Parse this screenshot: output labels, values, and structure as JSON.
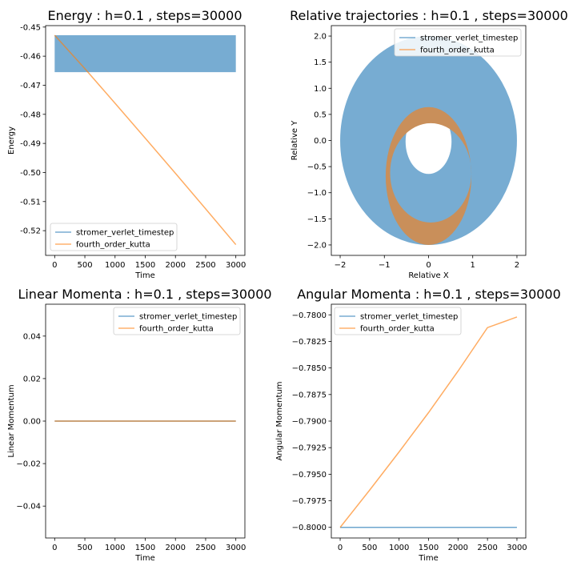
{
  "colors": {
    "blue": "#1f77b4",
    "orange": "#ff7f0e",
    "dark_orange": "#c98f5a",
    "light_blue": "#77acd2"
  },
  "chart_data": [
    {
      "id": "energy",
      "type": "line",
      "title": "Energy : h=0.1 , steps=30000",
      "xlabel": "Time",
      "ylabel": "Energy",
      "xlim": [
        -150,
        3150
      ],
      "ylim": [
        -0.5285,
        -0.4495
      ],
      "xticks": [
        0,
        500,
        1000,
        1500,
        2000,
        2500,
        3000
      ],
      "xtick_labels": [
        "0",
        "500",
        "1000",
        "1500",
        "2000",
        "2500",
        "3000"
      ],
      "yticks": [
        -0.45,
        -0.46,
        -0.47,
        -0.48,
        -0.49,
        -0.5,
        -0.51,
        -0.52
      ],
      "ytick_labels": [
        "-0.45",
        "-0.46",
        "-0.47",
        "-0.48",
        "-0.49",
        "-0.50",
        "-0.51",
        "-0.52"
      ],
      "legend": "bottom-left",
      "series": [
        {
          "name": "stromer_verlet_timestep",
          "style": "band",
          "x": [
            0,
            3000
          ],
          "ymin": -0.4655,
          "ymax": -0.4528
        },
        {
          "name": "fourth_order_kutta",
          "style": "line",
          "x": [
            0,
            500,
            1000,
            1500,
            2000,
            2500,
            3000
          ],
          "y": [
            -0.4528,
            -0.4643,
            -0.4762,
            -0.4882,
            -0.5003,
            -0.5125,
            -0.5248
          ]
        }
      ]
    },
    {
      "id": "trajectories",
      "type": "line",
      "title": "Relative trajectories : h=0.1 , steps=30000",
      "xlabel": "Relative X",
      "ylabel": "Relative Y",
      "xlim": [
        -2.2,
        2.2
      ],
      "ylim": [
        -2.2,
        2.2
      ],
      "xticks": [
        -2,
        -1,
        0,
        1,
        2
      ],
      "xtick_labels": [
        "−2",
        "−1",
        "0",
        "1",
        "2"
      ],
      "yticks": [
        2.0,
        1.5,
        1.0,
        0.5,
        0.0,
        -0.5,
        -1.0,
        -1.5,
        -2.0
      ],
      "ytick_labels": [
        "2.0",
        "1.5",
        "1.0",
        "0.5",
        "0.0",
        "−0.5",
        "−1.0",
        "−1.5",
        "−2.0"
      ],
      "legend": "top-right",
      "series": [
        {
          "name": "stromer_verlet_timestep",
          "style": "annulus",
          "outer_radius": 2.0,
          "inner_center": [
            0,
            -0.02
          ],
          "inner_rx": 0.52,
          "inner_ry": 0.62
        },
        {
          "name": "fourth_order_kutta",
          "style": "crescent",
          "outer_center": [
            0,
            -0.68
          ],
          "outer_rx": 0.97,
          "outer_ry": 1.32,
          "inner_center": [
            0.05,
            -0.62
          ],
          "inner_rx": 0.92,
          "inner_ry": 0.95
        }
      ]
    },
    {
      "id": "linear",
      "type": "line",
      "title": "Linear Momenta : h=0.1 , steps=30000",
      "xlabel": "Time",
      "ylabel": "Linear Momentum",
      "xlim": [
        -150,
        3150
      ],
      "ylim": [
        -0.055,
        0.055
      ],
      "xticks": [
        0,
        500,
        1000,
        1500,
        2000,
        2500,
        3000
      ],
      "xtick_labels": [
        "0",
        "500",
        "1000",
        "1500",
        "2000",
        "2500",
        "3000"
      ],
      "yticks": [
        0.04,
        0.02,
        0.0,
        -0.02,
        -0.04
      ],
      "ytick_labels": [
        "0.04",
        "0.02",
        "0.00",
        "−0.02",
        "−0.04"
      ],
      "legend": "top-right",
      "series": [
        {
          "name": "stromer_verlet_timestep",
          "style": "line",
          "x": [
            0,
            3000
          ],
          "y": [
            0,
            0
          ]
        },
        {
          "name": "fourth_order_kutta",
          "style": "line",
          "x": [
            0,
            3000
          ],
          "y": [
            0,
            0
          ]
        }
      ]
    },
    {
      "id": "angular",
      "type": "line",
      "title": "Angular Momenta : h=0.1 , steps=30000",
      "xlabel": "Time",
      "ylabel": "Angular Momentum",
      "xlim": [
        -150,
        3150
      ],
      "ylim": [
        -0.801,
        -0.779
      ],
      "xticks": [
        0,
        500,
        1000,
        1500,
        2000,
        2500,
        3000
      ],
      "xtick_labels": [
        "0",
        "500",
        "1000",
        "1500",
        "2000",
        "2500",
        "3000"
      ],
      "yticks": [
        -0.78,
        -0.7825,
        -0.785,
        -0.7875,
        -0.79,
        -0.7925,
        -0.795,
        -0.7975,
        -0.8
      ],
      "ytick_labels": [
        "−0.7800",
        "−0.7825",
        "−0.7850",
        "−0.7875",
        "−0.7900",
        "−0.7925",
        "−0.7950",
        "−0.7975",
        "−0.8000"
      ],
      "legend": "top-left",
      "series": [
        {
          "name": "stromer_verlet_timestep",
          "style": "line",
          "x": [
            0,
            3000
          ],
          "y": [
            -0.8,
            -0.8
          ]
        },
        {
          "name": "fourth_order_kutta",
          "style": "line",
          "x": [
            0,
            500,
            1000,
            1500,
            2000,
            2500,
            3000
          ],
          "y": [
            -0.8,
            -0.7965,
            -0.7929,
            -0.7892,
            -0.7853,
            -0.7812,
            -0.7802
          ]
        }
      ]
    }
  ]
}
